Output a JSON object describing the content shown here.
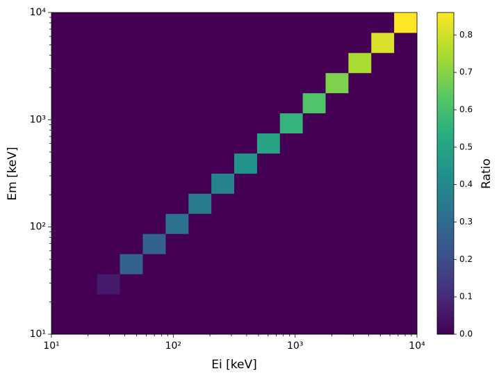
{
  "chart_data": {
    "type": "heatmap",
    "xlabel": "Ei [keV]",
    "ylabel": "Em [keV]",
    "colorbar_label": "Ratio",
    "colormap": "viridis",
    "xscale": "log",
    "yscale": "log",
    "xlim": [
      10,
      10000
    ],
    "ylim": [
      10,
      10000
    ],
    "xticks": [
      {
        "value": 10,
        "label": "10¹"
      },
      {
        "value": 100,
        "label": "10²"
      },
      {
        "value": 1000,
        "label": "10³"
      },
      {
        "value": 10000,
        "label": "10⁴"
      }
    ],
    "yticks": [
      {
        "value": 10,
        "label": "10¹"
      },
      {
        "value": 100,
        "label": "10²"
      },
      {
        "value": 1000,
        "label": "10³"
      },
      {
        "value": 10000,
        "label": "10⁴"
      }
    ],
    "xminorticks": [
      20,
      30,
      40,
      50,
      60,
      70,
      80,
      90,
      200,
      300,
      400,
      500,
      600,
      700,
      800,
      900,
      2000,
      3000,
      4000,
      5000,
      6000,
      7000,
      8000,
      9000
    ],
    "yminorticks": [
      20,
      30,
      40,
      50,
      60,
      70,
      80,
      90,
      200,
      300,
      400,
      500,
      600,
      700,
      800,
      900,
      2000,
      3000,
      4000,
      5000,
      6000,
      7000,
      8000,
      9000
    ],
    "xbins": [
      10,
      15.4,
      23.7,
      36.5,
      56.2,
      86.6,
      133.4,
      205.4,
      316.2,
      487.0,
      749.9,
      1154.8,
      1778.3,
      2738.4,
      4217.0,
      6493.8,
      10000
    ],
    "ybins": [
      10,
      15.4,
      23.7,
      36.5,
      56.2,
      86.6,
      133.4,
      205.4,
      316.2,
      487.0,
      749.9,
      1154.8,
      1778.3,
      2738.4,
      4217.0,
      6493.8,
      10000
    ],
    "z": [
      [
        0,
        0,
        0,
        0,
        0,
        0,
        0,
        0,
        0,
        0,
        0,
        0,
        0,
        0,
        0,
        0
      ],
      [
        0,
        0,
        0,
        0,
        0,
        0,
        0,
        0,
        0,
        0,
        0,
        0,
        0,
        0,
        0,
        0
      ],
      [
        0,
        0,
        0.06,
        0,
        0,
        0,
        0,
        0,
        0,
        0,
        0,
        0,
        0,
        0,
        0,
        0
      ],
      [
        0,
        0,
        0,
        0.27,
        0,
        0,
        0,
        0,
        0,
        0,
        0,
        0,
        0,
        0,
        0,
        0
      ],
      [
        0,
        0,
        0,
        0,
        0.27,
        0,
        0,
        0,
        0,
        0,
        0,
        0,
        0,
        0,
        0,
        0
      ],
      [
        0,
        0,
        0,
        0,
        0,
        0.32,
        0,
        0,
        0,
        0,
        0,
        0,
        0,
        0,
        0,
        0
      ],
      [
        0,
        0,
        0,
        0,
        0,
        0,
        0.35,
        0,
        0,
        0,
        0,
        0,
        0,
        0,
        0,
        0
      ],
      [
        0,
        0,
        0,
        0,
        0,
        0,
        0,
        0.38,
        0,
        0,
        0,
        0,
        0,
        0,
        0,
        0
      ],
      [
        0,
        0,
        0,
        0,
        0,
        0,
        0,
        0,
        0.44,
        0,
        0,
        0,
        0,
        0,
        0,
        0
      ],
      [
        0,
        0,
        0,
        0,
        0,
        0,
        0,
        0,
        0,
        0.5,
        0,
        0,
        0,
        0,
        0,
        0
      ],
      [
        0,
        0,
        0,
        0,
        0,
        0,
        0,
        0,
        0,
        0,
        0.56,
        0,
        0,
        0,
        0,
        0
      ],
      [
        0,
        0,
        0,
        0,
        0,
        0,
        0,
        0,
        0,
        0,
        0,
        0.62,
        0,
        0,
        0,
        0
      ],
      [
        0,
        0,
        0,
        0,
        0,
        0,
        0,
        0,
        0,
        0,
        0,
        0,
        0.69,
        0,
        0,
        0
      ],
      [
        0,
        0,
        0,
        0,
        0,
        0,
        0,
        0,
        0,
        0,
        0,
        0,
        0,
        0.75,
        0,
        0
      ],
      [
        0,
        0,
        0,
        0,
        0,
        0,
        0,
        0,
        0,
        0,
        0,
        0,
        0,
        0,
        0.81,
        0
      ],
      [
        0,
        0,
        0,
        0,
        0,
        0,
        0,
        0,
        0,
        0,
        0,
        0,
        0,
        0,
        0,
        0.86
      ]
    ],
    "zlim": [
      0,
      0.86
    ],
    "zticks": [
      0.0,
      0.1,
      0.2,
      0.3,
      0.4,
      0.5,
      0.6,
      0.7,
      0.8
    ]
  }
}
